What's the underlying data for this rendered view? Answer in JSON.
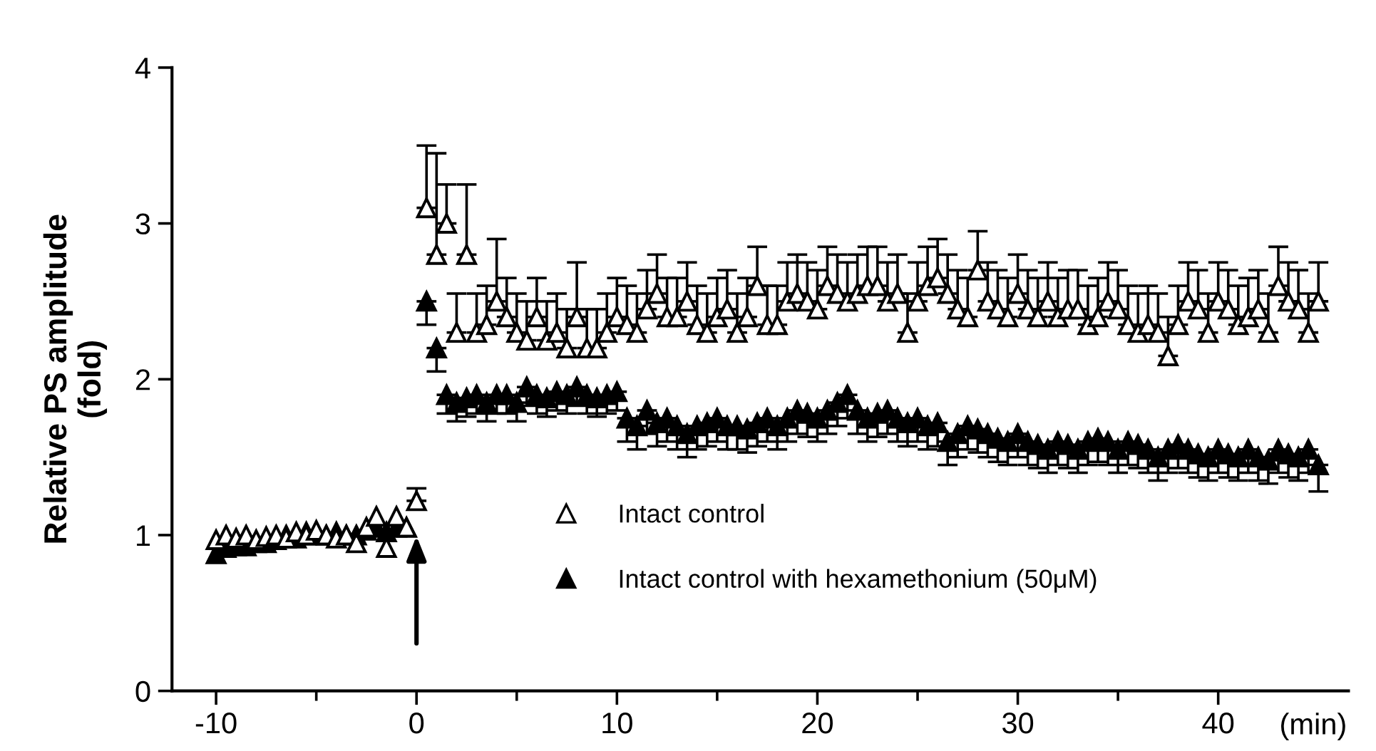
{
  "chart_data": {
    "type": "scatter",
    "xlabel": "(min)",
    "ylabel": "Relative PS amplitude\n(fold)",
    "xlim": [
      -12.2,
      46.5
    ],
    "ylim": [
      0,
      4
    ],
    "xticks": [
      -10,
      0,
      10,
      20,
      30,
      40
    ],
    "yticks": [
      0,
      1,
      2,
      3,
      4
    ],
    "marker": "triangle",
    "legend": "bottom",
    "grid": false,
    "x": [
      -10,
      -9.5,
      -9,
      -8.5,
      -8,
      -7.5,
      -7,
      -6.5,
      -6,
      -5.5,
      -5,
      -4.5,
      -4,
      -3.5,
      -3,
      -2.5,
      -2,
      -1.5,
      -1,
      -0.5,
      0,
      0.5,
      1,
      1.5,
      2,
      2.5,
      3,
      3.5,
      4,
      4.5,
      5,
      5.5,
      6,
      6.5,
      7,
      7.5,
      8,
      8.5,
      9,
      9.5,
      10,
      10.5,
      11,
      11.5,
      12,
      12.5,
      13,
      13.5,
      14,
      14.5,
      15,
      15.5,
      16,
      16.5,
      17,
      17.5,
      18,
      18.5,
      19,
      19.5,
      20,
      20.5,
      21,
      21.5,
      22,
      22.5,
      23,
      23.5,
      24,
      24.5,
      25,
      25.5,
      26,
      26.5,
      27,
      27.5,
      28,
      28.5,
      29,
      29.5,
      30,
      30.5,
      31,
      31.5,
      32,
      32.5,
      33,
      33.5,
      34,
      34.5,
      35,
      35.5,
      36,
      36.5,
      37,
      37.5,
      38,
      38.5,
      39,
      39.5,
      40,
      40.5,
      41,
      41.5,
      42,
      42.5,
      43,
      43.5,
      44,
      44.5,
      45
    ],
    "series": [
      {
        "name": "Intact control",
        "color": "#ffffff",
        "values": [
          0.97,
          1.0,
          0.98,
          1.0,
          0.97,
          0.99,
          1.0,
          0.98,
          1.02,
          1.0,
          1.03,
          1.0,
          0.98,
          1.0,
          0.95,
          1.05,
          1.12,
          0.92,
          1.12,
          1.05,
          1.22,
          3.1,
          2.8,
          3.0,
          2.3,
          2.8,
          2.3,
          2.35,
          2.5,
          2.4,
          2.3,
          2.25,
          2.4,
          2.25,
          2.3,
          2.2,
          2.4,
          2.2,
          2.2,
          2.3,
          2.4,
          2.35,
          2.3,
          2.45,
          2.55,
          2.4,
          2.4,
          2.5,
          2.35,
          2.3,
          2.4,
          2.45,
          2.3,
          2.4,
          2.6,
          2.35,
          2.35,
          2.5,
          2.55,
          2.5,
          2.45,
          2.6,
          2.55,
          2.5,
          2.55,
          2.6,
          2.6,
          2.5,
          2.55,
          2.3,
          2.5,
          2.6,
          2.65,
          2.55,
          2.45,
          2.4,
          2.7,
          2.5,
          2.45,
          2.4,
          2.55,
          2.45,
          2.4,
          2.5,
          2.4,
          2.45,
          2.45,
          2.35,
          2.4,
          2.5,
          2.45,
          2.35,
          2.3,
          2.35,
          2.3,
          2.15,
          2.35,
          2.5,
          2.45,
          2.3,
          2.5,
          2.45,
          2.35,
          2.4,
          2.45,
          2.3,
          2.6,
          2.5,
          2.45,
          2.3,
          2.5
        ],
        "errors": [
          null,
          null,
          null,
          null,
          null,
          null,
          null,
          null,
          null,
          null,
          null,
          null,
          null,
          null,
          null,
          null,
          null,
          null,
          null,
          null,
          [
            1.22,
            1.3
          ],
          [
            3.1,
            3.5
          ],
          [
            2.8,
            3.45
          ],
          [
            3.0,
            3.25
          ],
          [
            2.3,
            2.55
          ],
          [
            2.8,
            3.25
          ],
          [
            2.3,
            2.55
          ],
          [
            2.35,
            2.6
          ],
          [
            2.5,
            2.9
          ],
          [
            2.4,
            2.65
          ],
          [
            2.3,
            2.55
          ],
          [
            2.25,
            2.5
          ],
          [
            2.4,
            2.65
          ],
          [
            2.25,
            2.5
          ],
          [
            2.3,
            2.55
          ],
          [
            2.2,
            2.45
          ],
          [
            2.4,
            2.75
          ],
          [
            2.2,
            2.45
          ],
          [
            2.2,
            2.45
          ],
          [
            2.3,
            2.55
          ],
          [
            2.4,
            2.65
          ],
          [
            2.35,
            2.6
          ],
          [
            2.3,
            2.55
          ],
          [
            2.45,
            2.7
          ],
          [
            2.55,
            2.8
          ],
          [
            2.4,
            2.65
          ],
          [
            2.4,
            2.65
          ],
          [
            2.5,
            2.75
          ],
          [
            2.35,
            2.6
          ],
          [
            2.3,
            2.55
          ],
          [
            2.4,
            2.65
          ],
          [
            2.45,
            2.7
          ],
          [
            2.3,
            2.55
          ],
          [
            2.4,
            2.65
          ],
          [
            2.6,
            2.85
          ],
          [
            2.35,
            2.6
          ],
          [
            2.35,
            2.6
          ],
          [
            2.5,
            2.75
          ],
          [
            2.55,
            2.8
          ],
          [
            2.5,
            2.75
          ],
          [
            2.45,
            2.7
          ],
          [
            2.6,
            2.85
          ],
          [
            2.55,
            2.8
          ],
          [
            2.5,
            2.75
          ],
          [
            2.55,
            2.8
          ],
          [
            2.6,
            2.85
          ],
          [
            2.6,
            2.85
          ],
          [
            2.5,
            2.75
          ],
          [
            2.55,
            2.8
          ],
          [
            2.3,
            2.55
          ],
          [
            2.5,
            2.75
          ],
          [
            2.6,
            2.85
          ],
          [
            2.65,
            2.9
          ],
          [
            2.55,
            2.8
          ],
          [
            2.45,
            2.7
          ],
          [
            2.4,
            2.65
          ],
          [
            2.7,
            2.95
          ],
          [
            2.5,
            2.75
          ],
          [
            2.45,
            2.7
          ],
          [
            2.4,
            2.65
          ],
          [
            2.55,
            2.8
          ],
          [
            2.45,
            2.7
          ],
          [
            2.4,
            2.65
          ],
          [
            2.5,
            2.75
          ],
          [
            2.4,
            2.65
          ],
          [
            2.45,
            2.7
          ],
          [
            2.45,
            2.7
          ],
          [
            2.35,
            2.6
          ],
          [
            2.4,
            2.65
          ],
          [
            2.5,
            2.75
          ],
          [
            2.45,
            2.7
          ],
          [
            2.35,
            2.6
          ],
          [
            2.3,
            2.55
          ],
          [
            2.35,
            2.6
          ],
          [
            2.3,
            2.55
          ],
          [
            2.15,
            2.4
          ],
          [
            2.35,
            2.6
          ],
          [
            2.5,
            2.75
          ],
          [
            2.45,
            2.7
          ],
          [
            2.3,
            2.55
          ],
          [
            2.5,
            2.75
          ],
          [
            2.45,
            2.7
          ],
          [
            2.35,
            2.6
          ],
          [
            2.4,
            2.65
          ],
          [
            2.45,
            2.7
          ],
          [
            2.3,
            2.55
          ],
          [
            2.6,
            2.85
          ],
          [
            2.5,
            2.75
          ],
          [
            2.45,
            2.7
          ],
          [
            2.3,
            2.55
          ],
          [
            2.5,
            2.75
          ]
        ]
      },
      {
        "name": "Intact control with hexamethonium (50μM)",
        "color": "#000000",
        "values": [
          0.88,
          0.92,
          0.93,
          0.93,
          0.95,
          0.95,
          0.97,
          1.0,
          0.98,
          1.02,
          1.0,
          1.0,
          1.02,
          1.0,
          1.0,
          1.03,
          1.05,
          1.02,
          1.05,
          1.05,
          null,
          2.5,
          2.2,
          1.9,
          1.85,
          1.88,
          1.9,
          1.85,
          1.9,
          1.9,
          1.85,
          1.95,
          1.9,
          1.88,
          1.92,
          1.9,
          1.95,
          1.9,
          1.88,
          1.9,
          1.92,
          1.75,
          1.7,
          1.8,
          1.72,
          1.75,
          1.7,
          1.65,
          1.7,
          1.72,
          1.75,
          1.7,
          1.7,
          1.68,
          1.72,
          1.75,
          1.7,
          1.75,
          1.8,
          1.78,
          1.75,
          1.8,
          1.85,
          1.9,
          1.8,
          1.75,
          1.78,
          1.8,
          1.75,
          1.72,
          1.75,
          1.7,
          1.72,
          1.6,
          1.65,
          1.7,
          1.68,
          1.65,
          1.62,
          1.6,
          1.65,
          1.6,
          1.58,
          1.55,
          1.6,
          1.58,
          1.55,
          1.6,
          1.62,
          1.6,
          1.55,
          1.6,
          1.58,
          1.55,
          1.5,
          1.55,
          1.58,
          1.55,
          1.52,
          1.5,
          1.55,
          1.52,
          1.5,
          1.55,
          1.5,
          1.48,
          1.55,
          1.52,
          1.5,
          1.55,
          1.45
        ],
        "errors": [
          null,
          null,
          null,
          null,
          null,
          null,
          null,
          null,
          null,
          null,
          null,
          null,
          null,
          null,
          null,
          null,
          null,
          null,
          null,
          null,
          null,
          [
            2.35,
            2.5
          ],
          [
            2.05,
            2.2
          ],
          [
            1.78,
            1.9
          ],
          [
            1.73,
            1.85
          ],
          [
            1.76,
            1.88
          ],
          [
            1.78,
            1.9
          ],
          [
            1.73,
            1.85
          ],
          [
            1.78,
            1.9
          ],
          [
            1.78,
            1.9
          ],
          [
            1.73,
            1.85
          ],
          [
            1.83,
            1.95
          ],
          [
            1.78,
            1.9
          ],
          [
            1.76,
            1.88
          ],
          [
            1.8,
            1.92
          ],
          [
            1.78,
            1.9
          ],
          [
            1.83,
            1.95
          ],
          [
            1.78,
            1.9
          ],
          [
            1.76,
            1.88
          ],
          [
            1.78,
            1.9
          ],
          [
            1.8,
            1.92
          ],
          [
            1.6,
            1.75
          ],
          [
            1.55,
            1.7
          ],
          [
            1.65,
            1.8
          ],
          [
            1.57,
            1.72
          ],
          [
            1.6,
            1.75
          ],
          [
            1.55,
            1.7
          ],
          [
            1.5,
            1.65
          ],
          [
            1.55,
            1.7
          ],
          [
            1.57,
            1.72
          ],
          [
            1.6,
            1.75
          ],
          [
            1.55,
            1.7
          ],
          [
            1.55,
            1.7
          ],
          [
            1.53,
            1.68
          ],
          [
            1.57,
            1.72
          ],
          [
            1.6,
            1.75
          ],
          [
            1.55,
            1.7
          ],
          [
            1.6,
            1.75
          ],
          [
            1.65,
            1.8
          ],
          [
            1.63,
            1.78
          ],
          [
            1.6,
            1.75
          ],
          [
            1.65,
            1.8
          ],
          [
            1.7,
            1.85
          ],
          [
            1.75,
            1.9
          ],
          [
            1.65,
            1.8
          ],
          [
            1.6,
            1.75
          ],
          [
            1.63,
            1.78
          ],
          [
            1.65,
            1.8
          ],
          [
            1.6,
            1.75
          ],
          [
            1.57,
            1.72
          ],
          [
            1.6,
            1.75
          ],
          [
            1.55,
            1.7
          ],
          [
            1.57,
            1.72
          ],
          [
            1.45,
            1.6
          ],
          [
            1.5,
            1.65
          ],
          [
            1.55,
            1.7
          ],
          [
            1.53,
            1.68
          ],
          [
            1.5,
            1.65
          ],
          [
            1.47,
            1.62
          ],
          [
            1.45,
            1.6
          ],
          [
            1.5,
            1.65
          ],
          [
            1.45,
            1.6
          ],
          [
            1.43,
            1.58
          ],
          [
            1.4,
            1.55
          ],
          [
            1.45,
            1.6
          ],
          [
            1.43,
            1.58
          ],
          [
            1.4,
            1.55
          ],
          [
            1.45,
            1.6
          ],
          [
            1.47,
            1.62
          ],
          [
            1.45,
            1.6
          ],
          [
            1.4,
            1.55
          ],
          [
            1.45,
            1.6
          ],
          [
            1.43,
            1.58
          ],
          [
            1.4,
            1.55
          ],
          [
            1.35,
            1.5
          ],
          [
            1.4,
            1.55
          ],
          [
            1.43,
            1.58
          ],
          [
            1.4,
            1.55
          ],
          [
            1.37,
            1.52
          ],
          [
            1.35,
            1.5
          ],
          [
            1.4,
            1.55
          ],
          [
            1.37,
            1.52
          ],
          [
            1.35,
            1.5
          ],
          [
            1.4,
            1.55
          ],
          [
            1.35,
            1.5
          ],
          [
            1.33,
            1.48
          ],
          [
            1.4,
            1.55
          ],
          [
            1.37,
            1.52
          ],
          [
            1.35,
            1.5
          ],
          [
            1.4,
            1.55
          ],
          [
            1.28,
            1.45
          ]
        ]
      }
    ]
  }
}
